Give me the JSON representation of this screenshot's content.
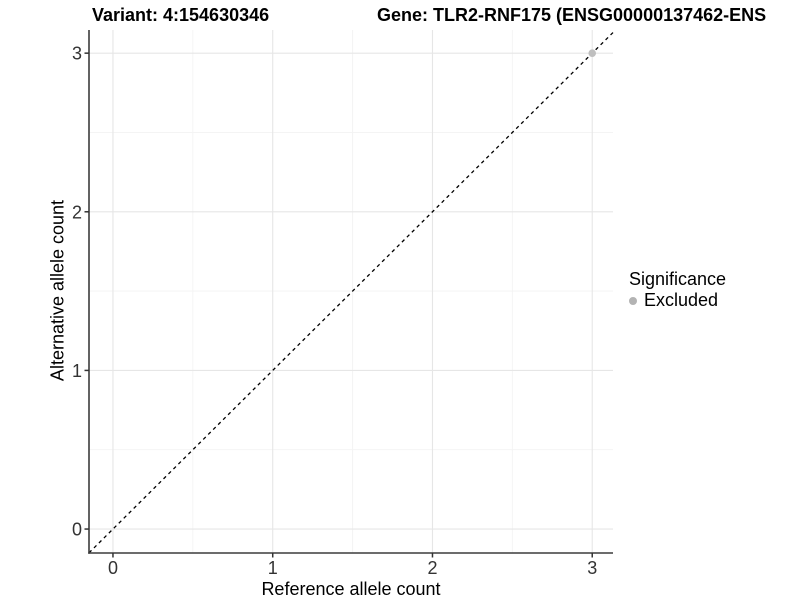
{
  "header": {
    "variant_title": "Variant: 4:154630346",
    "gene_title": "Gene: TLR2-RNF175 (ENSG00000137462-ENS"
  },
  "chart_data": {
    "type": "scatter",
    "title": "Variant: 4:154630346 / Gene: TLR2-RNF175 (ENSG00000137462-ENS",
    "xlabel": "Reference allele count",
    "ylabel": "Alternative allele count",
    "x_ticks": [
      0,
      1,
      2,
      3
    ],
    "y_ticks": [
      0,
      1,
      2,
      3
    ],
    "x_minor_ticks": [
      0.5,
      1.5,
      2.5
    ],
    "y_minor_ticks": [
      0.5,
      1.5,
      2.5
    ],
    "xlim": [
      -0.15,
      3.13
    ],
    "ylim": [
      -0.151,
      3.146
    ],
    "grid": "major-and-minor",
    "reference_line": {
      "type": "identity",
      "equation": "y = x",
      "style": "dashed",
      "color": "#000000"
    },
    "series": [
      {
        "name": "Excluded",
        "color": "#bfbfbf",
        "points": [
          {
            "x": 3,
            "y": 3
          }
        ]
      }
    ],
    "legend": {
      "title": "Significance",
      "position": "right",
      "items": [
        {
          "label": "Excluded",
          "color": "#b3b3b3",
          "marker": "circle"
        }
      ]
    }
  },
  "colors": {
    "background": "#ffffff",
    "grid_major": "#e6e6e6",
    "grid_minor": "#f3f3f3",
    "axis_line": "#3c3c3c",
    "tick_mark": "#333333",
    "tick_label": "#333333",
    "point": "#bfbfbf",
    "dashed_line": "#000000"
  }
}
